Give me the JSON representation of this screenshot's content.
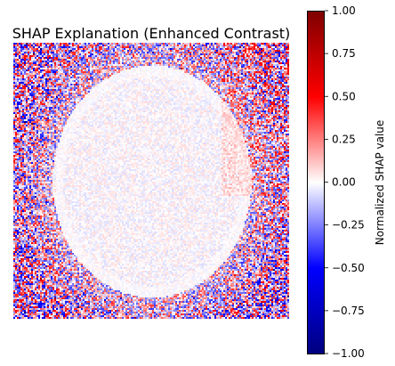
{
  "chart_data": {
    "type": "heatmap",
    "title": "SHAP Explanation (Enhanced Contrast)",
    "colorbar": {
      "label": "Normalized SHAP value",
      "range": [
        -1.0,
        1.0
      ],
      "ticks": [
        1.0,
        0.75,
        0.5,
        0.25,
        0.0,
        -0.25,
        -0.5,
        -0.75,
        -1.0
      ],
      "tick_labels": [
        "1.00",
        "0.75",
        "0.50",
        "0.25",
        "0.00",
        "−0.25",
        "−0.50",
        "−0.75",
        "−1.00"
      ],
      "colormap": "seismic",
      "colors": [
        "#800000",
        "#ff0000",
        "#ffffff",
        "#0000ff",
        "#000080"
      ]
    },
    "axes_visible": false,
    "grid": false
  }
}
